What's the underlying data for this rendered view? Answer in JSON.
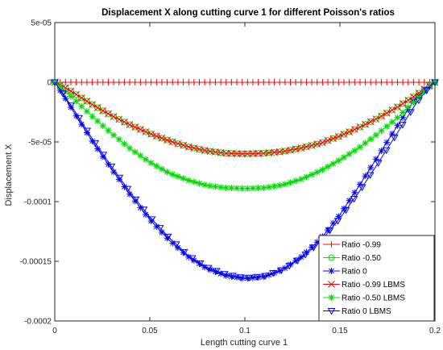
{
  "chart_data": {
    "type": "line",
    "title": "Displacement X along cutting curve 1 for different Poisson's ratios",
    "xlabel": "Length cutting curve 1",
    "ylabel": "Displacement X",
    "xlim": [
      0,
      0.2
    ],
    "ylim": [
      -0.0002,
      5e-05
    ],
    "x_ticks": [
      0,
      0.05,
      0.1,
      0.15,
      0.2
    ],
    "x_tick_labels": [
      "0",
      "0.05",
      "0.1",
      "0.15",
      "0.2"
    ],
    "y_ticks": [
      5e-05,
      0,
      -5e-05,
      -0.0001,
      -0.00015,
      -0.0002
    ],
    "y_tick_labels": [
      "5e-05",
      "0",
      "-5e-05",
      "-0.0001",
      "-0.00015",
      "-0.0002"
    ],
    "grid": false,
    "legend_position": "bottom-right",
    "series": [
      {
        "name": "Ratio -0.99",
        "color": "#ff0000",
        "marker": "plus",
        "x": [
          0,
          0.01,
          0.02,
          0.03,
          0.04,
          0.05,
          0.06,
          0.07,
          0.08,
          0.09,
          0.1,
          0.11,
          0.12,
          0.13,
          0.14,
          0.15,
          0.16,
          0.17,
          0.18,
          0.19,
          0.2
        ],
        "y": [
          0,
          0,
          0,
          0,
          0,
          0,
          0,
          0,
          0,
          0,
          0,
          0,
          0,
          0,
          0,
          0,
          0,
          0,
          0,
          0,
          0
        ]
      },
      {
        "name": "Ratio -0.50",
        "color": "#00dd00",
        "marker": "circle",
        "x": [
          0,
          0.005,
          0.01,
          0.02,
          0.03,
          0.04,
          0.05,
          0.06,
          0.07,
          0.08,
          0.09,
          0.1,
          0.11,
          0.12,
          0.13,
          0.14,
          0.15,
          0.16,
          0.17,
          0.18,
          0.19,
          0.195,
          0.2
        ],
        "y": [
          0,
          -4e-06,
          -9e-06,
          -1.9e-05,
          -2.8e-05,
          -3.6e-05,
          -4.3e-05,
          -4.9e-05,
          -5.4e-05,
          -5.75e-05,
          -5.95e-05,
          -6e-05,
          -5.95e-05,
          -5.8e-05,
          -5.5e-05,
          -5.1e-05,
          -4.5e-05,
          -3.8e-05,
          -3e-05,
          -2.1e-05,
          -1.1e-05,
          -5e-06,
          0
        ]
      },
      {
        "name": "Ratio 0",
        "color": "#0000ff",
        "marker": "asterisk",
        "x": [
          0,
          0.005,
          0.01,
          0.02,
          0.03,
          0.04,
          0.05,
          0.06,
          0.07,
          0.08,
          0.09,
          0.1,
          0.11,
          0.12,
          0.13,
          0.14,
          0.15,
          0.16,
          0.17,
          0.18,
          0.19,
          0.2
        ],
        "y": [
          0,
          -1.2e-05,
          -2.5e-05,
          -5e-05,
          -7.3e-05,
          -9.5e-05,
          -0.000115,
          -0.000132,
          -0.000146,
          -0.000156,
          -0.000162,
          -0.0001645,
          -0.000163,
          -0.000157,
          -0.000146,
          -0.000131,
          -0.000111,
          -8.7e-05,
          -6.2e-05,
          -3.7e-05,
          -1.3e-05,
          0
        ]
      },
      {
        "name": "Ratio -0.99 LBMS",
        "color": "#ff0000",
        "marker": "cross",
        "x": [
          0,
          0.005,
          0.01,
          0.02,
          0.03,
          0.04,
          0.05,
          0.06,
          0.07,
          0.08,
          0.09,
          0.1,
          0.11,
          0.12,
          0.13,
          0.14,
          0.15,
          0.16,
          0.17,
          0.18,
          0.19,
          0.195,
          0.2
        ],
        "y": [
          0,
          -4e-06,
          -9e-06,
          -1.9e-05,
          -2.8e-05,
          -3.6e-05,
          -4.3e-05,
          -4.9e-05,
          -5.4e-05,
          -5.75e-05,
          -5.95e-05,
          -6e-05,
          -5.95e-05,
          -5.8e-05,
          -5.5e-05,
          -5.1e-05,
          -4.5e-05,
          -3.8e-05,
          -3e-05,
          -2.1e-05,
          -1.1e-05,
          -5e-06,
          0
        ]
      },
      {
        "name": "Ratio -0.50 LBMS",
        "color": "#00dd00",
        "marker": "star",
        "x": [
          0,
          0.005,
          0.01,
          0.02,
          0.03,
          0.04,
          0.05,
          0.06,
          0.07,
          0.08,
          0.09,
          0.1,
          0.11,
          0.12,
          0.13,
          0.14,
          0.15,
          0.16,
          0.17,
          0.18,
          0.19,
          0.195,
          0.2
        ],
        "y": [
          0,
          -7e-06,
          -1.4e-05,
          -2.9e-05,
          -4.3e-05,
          -5.6e-05,
          -6.7e-05,
          -7.6e-05,
          -8.2e-05,
          -8.65e-05,
          -8.85e-05,
          -8.9e-05,
          -8.85e-05,
          -8.6e-05,
          -8.1e-05,
          -7.4e-05,
          -6.5e-05,
          -5.5e-05,
          -4.3e-05,
          -3e-05,
          -1.5e-05,
          -7e-06,
          0
        ]
      },
      {
        "name": "Ratio 0 LBMS",
        "color": "#0000ff",
        "marker": "triangle-down",
        "x": [
          0,
          0.005,
          0.01,
          0.02,
          0.03,
          0.04,
          0.05,
          0.06,
          0.07,
          0.08,
          0.09,
          0.1,
          0.11,
          0.12,
          0.13,
          0.14,
          0.15,
          0.16,
          0.17,
          0.18,
          0.19,
          0.197,
          0.2
        ],
        "y": [
          0,
          -1.1e-05,
          -2.3e-05,
          -4.8e-05,
          -7.1e-05,
          -9.3e-05,
          -0.000113,
          -0.00013,
          -0.000145,
          -0.000155,
          -0.000161,
          -0.000164,
          -0.0001625,
          -0.000157,
          -0.000147,
          -0.000133,
          -0.000114,
          -9.2e-05,
          -6.8e-05,
          -4.3e-05,
          -1.8e-05,
          -4e-06,
          0
        ]
      }
    ]
  }
}
